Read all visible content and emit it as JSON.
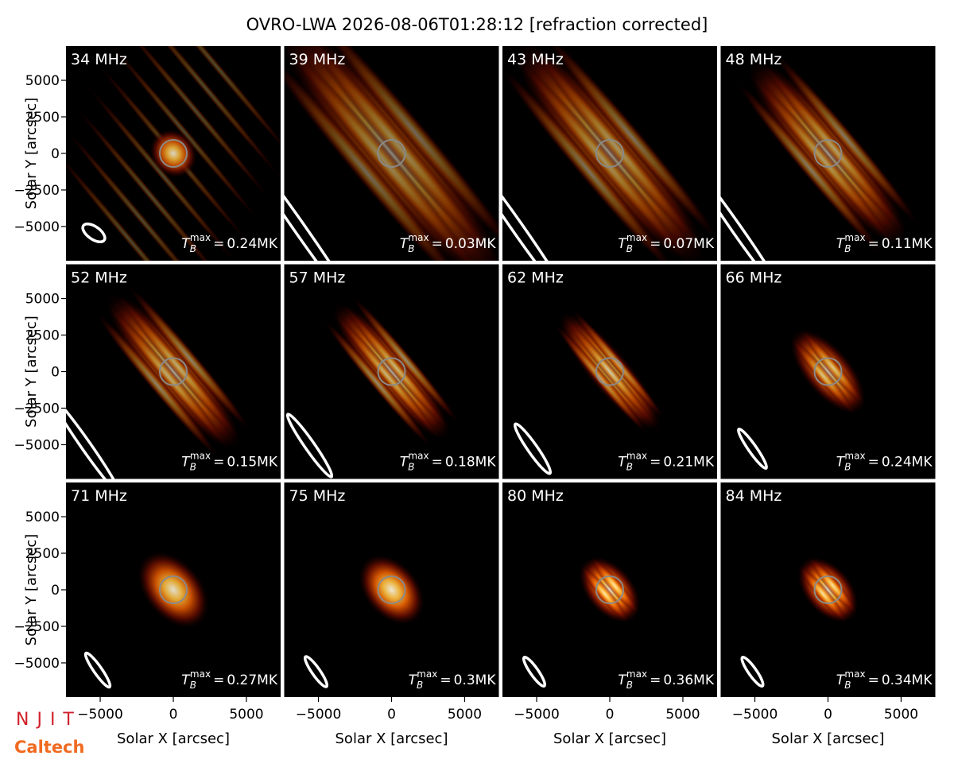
{
  "chart_data": {
    "type": "image-grid",
    "title": "OVRO-LWA 2026-08-06T01:28:12 [refraction corrected]",
    "xlabel": "Solar X [arcsec]",
    "ylabel": "Solar Y [arcsec]",
    "xlim": [
      -7340,
      7340
    ],
    "ylim": [
      -7340,
      7340
    ],
    "xticks": [
      {
        "value": -5000,
        "label": "−5000"
      },
      0,
      5000
    ],
    "yticks": [
      {
        "value": -5000,
        "label": "−5000"
      },
      {
        "value": -2500,
        "label": "−2500"
      },
      0,
      2500,
      5000
    ],
    "panels": [
      "34 MHz",
      "39 MHz",
      "43 MHz",
      "48 MHz",
      "52 MHz",
      "57 MHz",
      "62 MHz",
      "66 MHz",
      "71 MHz",
      "75 MHz",
      "80 MHz",
      "84 MHz"
    ],
    "tmax_symbol": {
      "base": "T",
      "sub": "B",
      "sup": "max",
      "equals": "="
    },
    "tmax": [
      0.24,
      0.03,
      0.07,
      0.11,
      0.15,
      0.18,
      0.21,
      0.24,
      0.27,
      0.3,
      0.36,
      0.34
    ],
    "tmax_value_labels": [
      "0.24MK",
      "0.03MK",
      "0.07MK",
      "0.11MK",
      "0.15MK",
      "0.18MK",
      "0.21MK",
      "0.24MK",
      "0.27MK",
      "0.3MK",
      "0.36MK",
      "0.34MK"
    ],
    "logos": {
      "njit": "NJIT",
      "caltech": "Caltech"
    }
  }
}
